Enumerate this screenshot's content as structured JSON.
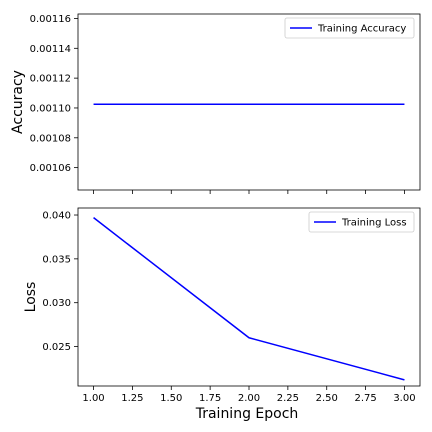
{
  "chart_data": [
    {
      "type": "line",
      "xlabel": "",
      "ylabel": "Accuracy",
      "legend": "top-right",
      "grid": false,
      "xlim": [
        0.9,
        3.1
      ],
      "ylim": [
        0.001045,
        0.001163
      ],
      "x_ticks": [
        1.0,
        1.25,
        1.5,
        1.75,
        2.0,
        2.25,
        2.5,
        2.75,
        3.0
      ],
      "x_tick_labels_shown": false,
      "y_ticks": [
        "0.00106",
        "0.00108",
        "0.00110",
        "0.00112",
        "0.00114",
        "0.00116"
      ],
      "series": [
        {
          "name": "Training Accuracy",
          "color": "#0000ff",
          "x": [
            1,
            2,
            3
          ],
          "y": [
            0.0011025,
            0.0011025,
            0.0011025
          ]
        }
      ]
    },
    {
      "type": "line",
      "xlabel": "Training Epoch",
      "ylabel": "Loss",
      "legend": "top-right",
      "grid": false,
      "xlim": [
        0.9,
        3.1
      ],
      "ylim": [
        0.0205,
        0.0408
      ],
      "x_ticks": [
        "1.00",
        "1.25",
        "1.50",
        "1.75",
        "2.00",
        "2.25",
        "2.50",
        "2.75",
        "3.00"
      ],
      "x_tick_labels_shown": true,
      "y_ticks": [
        "0.025",
        "0.030",
        "0.035",
        "0.040"
      ],
      "series": [
        {
          "name": "Training Loss",
          "color": "#0000ff",
          "x": [
            1,
            2,
            3
          ],
          "y": [
            0.0397,
            0.026,
            0.0212
          ]
        }
      ]
    }
  ]
}
